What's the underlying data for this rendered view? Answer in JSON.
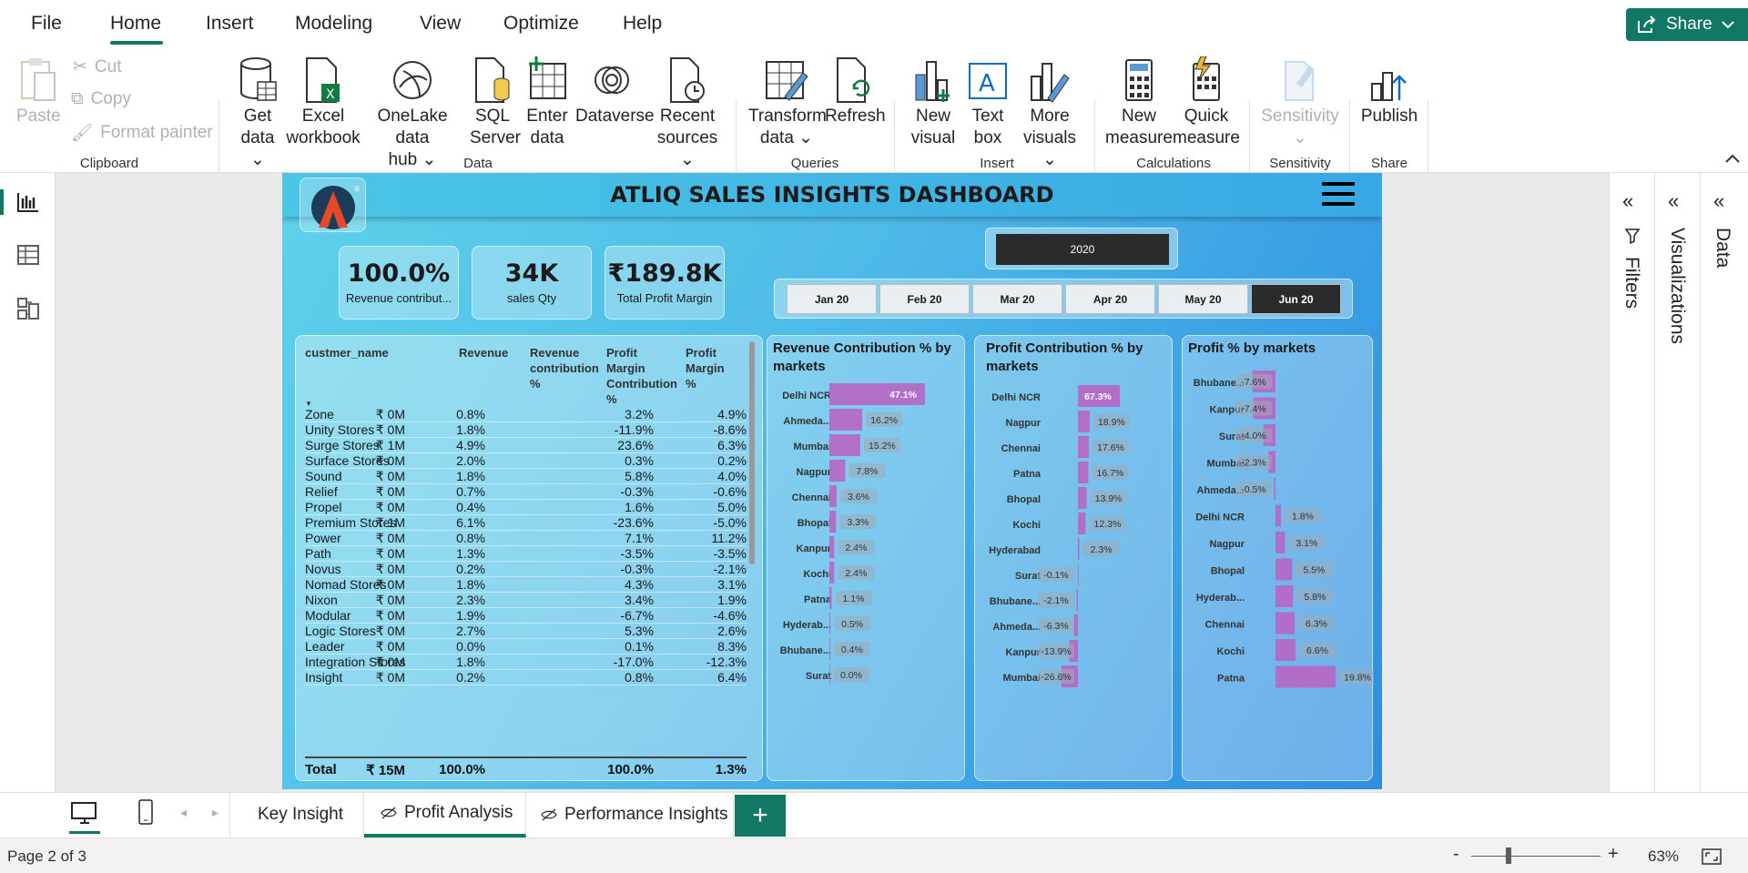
{
  "menu": {
    "items": [
      "File",
      "Home",
      "Insert",
      "Modeling",
      "View",
      "Optimize",
      "Help"
    ],
    "active": "Home",
    "share_label": "Share"
  },
  "ribbon": {
    "clipboard": {
      "paste": "Paste",
      "cut": "Cut",
      "copy": "Copy",
      "format_painter": "Format painter",
      "label": "Clipboard"
    },
    "data": {
      "get_data": [
        "Get",
        "data"
      ],
      "excel": [
        "Excel",
        "workbook"
      ],
      "onelake": [
        "OneLake data",
        "hub"
      ],
      "sql": [
        "SQL",
        "Server"
      ],
      "enter": [
        "Enter",
        "data"
      ],
      "dataverse": "Dataverse",
      "recent": [
        "Recent",
        "sources"
      ],
      "label": "Data"
    },
    "queries": {
      "transform": [
        "Transform",
        "data"
      ],
      "refresh": "Refresh",
      "label": "Queries"
    },
    "insert": {
      "new_visual": [
        "New",
        "visual"
      ],
      "text_box": [
        "Text",
        "box"
      ],
      "more_visuals": [
        "More",
        "visuals"
      ],
      "label": "Insert"
    },
    "calculations": {
      "new_measure": [
        "New",
        "measure"
      ],
      "quick_measure": [
        "Quick",
        "measure"
      ],
      "label": "Calculations"
    },
    "sensitivity": {
      "button": "Sensitivity",
      "label": "Sensitivity"
    },
    "share": {
      "publish": "Publish",
      "label": "Share"
    }
  },
  "report": {
    "title": "ATLIQ SALES INSIGHTS DASHBOARD",
    "kpis": [
      {
        "value": "100.0%",
        "label": "Revenue contribut..."
      },
      {
        "value": "34K",
        "label": "sales Qty"
      },
      {
        "value": "₹189.8K",
        "label": "Total Profit Margin"
      }
    ],
    "year": "2020",
    "months": [
      "Jan 20",
      "Feb 20",
      "Mar 20",
      "Apr 20",
      "May 20",
      "Jun 20"
    ],
    "selected_month": "Jun 20",
    "table": {
      "headers": [
        "custmer_name",
        "Revenue",
        "Revenue contribution %",
        "Profit Margin Contribution %",
        "Profit Margin %"
      ],
      "rows": [
        [
          "Zone",
          "₹ 0M",
          "0.8%",
          "3.2%",
          "4.9%"
        ],
        [
          "Unity Stores",
          "₹ 0M",
          "1.8%",
          "-11.9%",
          "-8.6%"
        ],
        [
          "Surge Stores",
          "₹ 1M",
          "4.9%",
          "23.6%",
          "6.3%"
        ],
        [
          "Surface Stores",
          "₹ 0M",
          "2.0%",
          "0.3%",
          "0.2%"
        ],
        [
          "Sound",
          "₹ 0M",
          "1.8%",
          "5.8%",
          "4.0%"
        ],
        [
          "Relief",
          "₹ 0M",
          "0.7%",
          "-0.3%",
          "-0.6%"
        ],
        [
          "Propel",
          "₹ 0M",
          "0.4%",
          "1.6%",
          "5.0%"
        ],
        [
          "Premium Stores",
          "₹ 1M",
          "6.1%",
          "-23.6%",
          "-5.0%"
        ],
        [
          "Power",
          "₹ 0M",
          "0.8%",
          "7.1%",
          "11.2%"
        ],
        [
          "Path",
          "₹ 0M",
          "1.3%",
          "-3.5%",
          "-3.5%"
        ],
        [
          "Novus",
          "₹ 0M",
          "0.2%",
          "-0.3%",
          "-2.1%"
        ],
        [
          "Nomad Stores",
          "₹ 0M",
          "1.8%",
          "4.3%",
          "3.1%"
        ],
        [
          "Nixon",
          "₹ 0M",
          "2.3%",
          "3.4%",
          "1.9%"
        ],
        [
          "Modular",
          "₹ 0M",
          "1.9%",
          "-6.7%",
          "-4.6%"
        ],
        [
          "Logic Stores",
          "₹ 0M",
          "2.7%",
          "5.3%",
          "2.6%"
        ],
        [
          "Leader",
          "₹ 0M",
          "0.0%",
          "0.1%",
          "8.3%"
        ],
        [
          "Integration Stores",
          "₹ 0M",
          "1.8%",
          "-17.0%",
          "-12.3%"
        ],
        [
          "Insight",
          "₹ 0M",
          "0.2%",
          "0.8%",
          "6.4%"
        ]
      ],
      "total": [
        "Total",
        "₹ 15M",
        "100.0%",
        "100.0%",
        "1.3%"
      ]
    }
  },
  "chart_data": [
    {
      "type": "bar",
      "title": "Revenue Contribution % by markets",
      "categories": [
        "Delhi NCR",
        "Ahmeda...",
        "Mumbai",
        "Nagpur",
        "Chennai",
        "Bhopal",
        "Kanpur",
        "Kochi",
        "Patna",
        "Hyderab...",
        "Bhubane...",
        "Surat"
      ],
      "values": [
        47.1,
        16.2,
        15.2,
        7.8,
        3.6,
        3.3,
        2.4,
        2.4,
        1.1,
        0.5,
        0.4,
        0.0
      ],
      "labels": [
        "47.1%",
        "16.2%",
        "15.2%",
        "7.8%",
        "3.6%",
        "3.3%",
        "2.4%",
        "2.4%",
        "1.1%",
        "0.5%",
        "0.4%",
        "0.0%"
      ]
    },
    {
      "type": "bar",
      "title": "Profit Contribution % by markets",
      "categories": [
        "Delhi NCR",
        "Nagpur",
        "Chennai",
        "Patna",
        "Bhopal",
        "Kochi",
        "Hyderabad",
        "Surat",
        "Bhubane...",
        "Ahmeda...",
        "Kanpur",
        "Mumbai"
      ],
      "values": [
        67.3,
        18.9,
        17.6,
        16.7,
        13.9,
        12.3,
        2.3,
        -0.1,
        -2.1,
        -6.3,
        -13.9,
        -26.6
      ],
      "labels": [
        "67.3%",
        "18.9%",
        "17.6%",
        "16.7%",
        "13.9%",
        "12.3%",
        "2.3%",
        "-0.1%",
        "-2.1%",
        "-6.3%",
        "-13.9%",
        "-26.6%"
      ]
    },
    {
      "type": "bar",
      "title": "Profit % by markets",
      "categories": [
        "Bhubane...",
        "Kanpur",
        "Surat",
        "Mumbai",
        "Ahmeda...",
        "Delhi NCR",
        "Nagpur",
        "Bhopal",
        "Hyderab...",
        "Chennai",
        "Kochi",
        "Patna"
      ],
      "values": [
        -7.6,
        -7.4,
        -4.0,
        -2.3,
        -0.5,
        1.8,
        3.1,
        5.5,
        5.8,
        6.3,
        6.6,
        19.8
      ],
      "labels": [
        "-7.6%",
        "-7.4%",
        "-4.0%",
        "-2.3%",
        "-0.5%",
        "1.8%",
        "3.1%",
        "5.5%",
        "5.8%",
        "6.3%",
        "6.6%",
        "19.8%"
      ]
    }
  ],
  "panes": {
    "filters": "Filters",
    "visualizations": "Visualizations",
    "data": "Data"
  },
  "pages": {
    "tabs": [
      "Key Insight",
      "Profit Analysis",
      "Performance Insights"
    ],
    "active": "Profit Analysis"
  },
  "status": {
    "page": "Page 2 of 3",
    "zoom": "63%"
  },
  "colors": {
    "accent": "#117865",
    "bar": "#b866c4"
  }
}
